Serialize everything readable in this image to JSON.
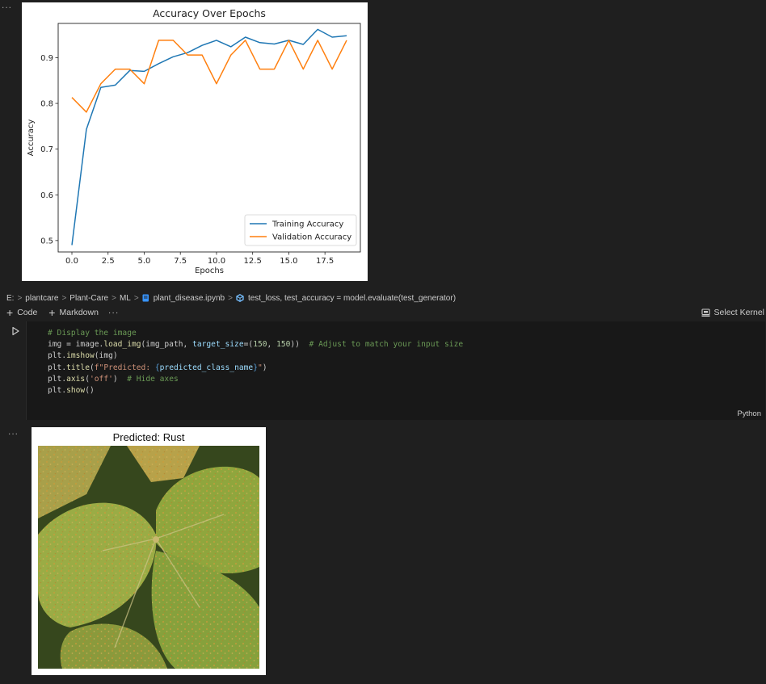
{
  "output_marker_top": "...",
  "output_marker_bottom": "...",
  "chart_data": {
    "type": "line",
    "title": "Accuracy Over Epochs",
    "xlabel": "Epochs",
    "ylabel": "Accuracy",
    "xlim": [
      -0.95,
      19.95
    ],
    "ylim": [
      0.475,
      0.975
    ],
    "xticks": [
      0.0,
      2.5,
      5.0,
      7.5,
      10.0,
      12.5,
      15.0,
      17.5
    ],
    "yticks": [
      0.5,
      0.6,
      0.7,
      0.8,
      0.9
    ],
    "xtick_labels": [
      "0.0",
      "2.5",
      "5.0",
      "7.5",
      "10.0",
      "12.5",
      "15.0",
      "17.5"
    ],
    "ytick_labels": [
      "0.5",
      "0.6",
      "0.7",
      "0.8",
      "0.9"
    ],
    "x": [
      0,
      1,
      2,
      3,
      4,
      5,
      6,
      7,
      8,
      9,
      10,
      11,
      12,
      13,
      14,
      15,
      16,
      17,
      18,
      19
    ],
    "series": [
      {
        "name": "Training Accuracy",
        "color": "#1f77b4",
        "values": [
          0.49,
          0.743,
          0.835,
          0.84,
          0.872,
          0.87,
          0.887,
          0.902,
          0.911,
          0.927,
          0.938,
          0.924,
          0.945,
          0.933,
          0.93,
          0.938,
          0.929,
          0.962,
          0.945,
          0.948
        ]
      },
      {
        "name": "Validation Accuracy",
        "color": "#ff7f0e",
        "values": [
          0.813,
          0.781,
          0.843,
          0.875,
          0.875,
          0.843,
          0.938,
          0.938,
          0.906,
          0.906,
          0.843,
          0.906,
          0.938,
          0.875,
          0.875,
          0.938,
          0.875,
          0.938,
          0.875,
          0.938
        ]
      }
    ],
    "legend": "lower-right",
    "grid": false
  },
  "breadcrumb": {
    "items": [
      "E:",
      "plantcare",
      "Plant-Care",
      "ML",
      "plant_disease.ipynb",
      "test_loss, test_accuracy = model.evaluate(test_generator)"
    ],
    "separator": ">"
  },
  "toolbar": {
    "code_label": "Code",
    "markdown_label": "Markdown",
    "more_label": "···",
    "select_kernel_label": "Select Kernel"
  },
  "cell": {
    "language": "Python",
    "lines": {
      "l1": "# Display the image",
      "l2a": "img = image.",
      "l2b": "load_img",
      "l2c": "(img_path, ",
      "l2d": "target_size",
      "l2e": "=(",
      "l2f": "150",
      "l2g": ", ",
      "l2h": "150",
      "l2i": "))  ",
      "l2j": "# Adjust to match your input size",
      "l3a": "plt.",
      "l3b": "imshow",
      "l3c": "(img)",
      "l4a": "plt.",
      "l4b": "title",
      "l4c": "(",
      "l4d": "f\"Predicted: ",
      "l4e": "{",
      "l4f": "predicted_class_name",
      "l4g": "}",
      "l4h": "\"",
      "l4i": ")",
      "l5a": "plt.",
      "l5b": "axis",
      "l5c": "(",
      "l5d": "'off'",
      "l5e": ")  ",
      "l5f": "# Hide axes",
      "l6a": "plt.",
      "l6b": "show",
      "l6c": "()"
    }
  },
  "prediction": {
    "title": "Predicted: Rust"
  },
  "colors": {
    "background": "#1f1f1f",
    "cell_background": "#181818",
    "training": "#1f77b4",
    "validation": "#ff7f0e"
  },
  "icons": {
    "run": "play-icon",
    "notebook": "notebook-file-icon",
    "symbol": "symbol-method-icon",
    "kernel": "kernel-icon"
  }
}
